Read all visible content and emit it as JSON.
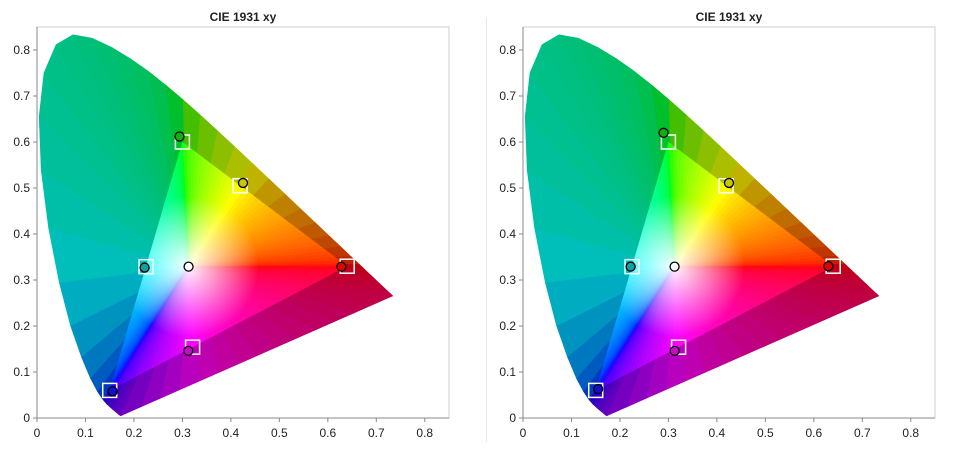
{
  "chart_data": [
    {
      "type": "scatter",
      "title": "CIE 1931 xy",
      "xlim": [
        0,
        0.85
      ],
      "ylim": [
        0,
        0.85
      ],
      "xticks": [
        "0",
        "0.1",
        "0.2",
        "0.3",
        "0.4",
        "0.5",
        "0.6",
        "0.7",
        "0.8"
      ],
      "yticks": [
        "0",
        "0.1",
        "0.2",
        "0.3",
        "0.4",
        "0.5",
        "0.6",
        "0.7",
        "0.8"
      ],
      "grid": false,
      "series": [
        {
          "marker": "square",
          "points": [
            {
              "x": 0.64,
              "y": 0.33,
              "color": "#ff0000"
            },
            {
              "x": 0.3,
              "y": 0.6,
              "color": "#00ff00"
            },
            {
              "x": 0.15,
              "y": 0.06,
              "color": "#0000ff"
            },
            {
              "x": 0.225,
              "y": 0.329,
              "color": "#00ffff"
            },
            {
              "x": 0.321,
              "y": 0.154,
              "color": "#ff00ff"
            },
            {
              "x": 0.419,
              "y": 0.505,
              "color": "#ffff00"
            }
          ]
        },
        {
          "marker": "circle",
          "points": [
            {
              "x": 0.628,
              "y": 0.329,
              "color": "#e00000"
            },
            {
              "x": 0.294,
              "y": 0.612,
              "color": "#10b010"
            },
            {
              "x": 0.156,
              "y": 0.058,
              "color": "#1010d0"
            },
            {
              "x": 0.222,
              "y": 0.327,
              "color": "#10a0a0"
            },
            {
              "x": 0.312,
              "y": 0.146,
              "color": "#c010c0"
            },
            {
              "x": 0.425,
              "y": 0.511,
              "color": "#c8c800"
            },
            {
              "x": 0.3127,
              "y": 0.329,
              "color": "#ffffff"
            }
          ]
        }
      ]
    },
    {
      "type": "scatter",
      "title": "CIE 1931 xy",
      "xlim": [
        0,
        0.85
      ],
      "ylim": [
        0,
        0.85
      ],
      "xticks": [
        "0",
        "0.1",
        "0.2",
        "0.3",
        "0.4",
        "0.5",
        "0.6",
        "0.7",
        "0.8"
      ],
      "yticks": [
        "0",
        "0.1",
        "0.2",
        "0.3",
        "0.4",
        "0.5",
        "0.6",
        "0.7",
        "0.8"
      ],
      "grid": false,
      "series": [
        {
          "marker": "square",
          "points": [
            {
              "x": 0.64,
              "y": 0.33,
              "color": "#ff0000"
            },
            {
              "x": 0.3,
              "y": 0.6,
              "color": "#00ff00"
            },
            {
              "x": 0.15,
              "y": 0.06,
              "color": "#0000ff"
            },
            {
              "x": 0.225,
              "y": 0.329,
              "color": "#00ffff"
            },
            {
              "x": 0.321,
              "y": 0.154,
              "color": "#ff00ff"
            },
            {
              "x": 0.419,
              "y": 0.505,
              "color": "#ffff00"
            }
          ]
        },
        {
          "marker": "circle",
          "points": [
            {
              "x": 0.63,
              "y": 0.33,
              "color": "#e00000"
            },
            {
              "x": 0.29,
              "y": 0.62,
              "color": "#10b010"
            },
            {
              "x": 0.155,
              "y": 0.063,
              "color": "#1010d0"
            },
            {
              "x": 0.222,
              "y": 0.329,
              "color": "#10a0a0"
            },
            {
              "x": 0.313,
              "y": 0.146,
              "color": "#c010c0"
            },
            {
              "x": 0.425,
              "y": 0.511,
              "color": "#c8c800"
            },
            {
              "x": 0.3127,
              "y": 0.329,
              "color": "#ffffff"
            }
          ]
        }
      ]
    }
  ],
  "spectral_locus": [
    [
      0.1741,
      0.005
    ],
    [
      0.1738,
      0.0049
    ],
    [
      0.1736,
      0.0049
    ],
    [
      0.1733,
      0.0048
    ],
    [
      0.173,
      0.0048
    ],
    [
      0.1726,
      0.0048
    ],
    [
      0.1721,
      0.0048
    ],
    [
      0.1714,
      0.0051
    ],
    [
      0.1703,
      0.0058
    ],
    [
      0.1689,
      0.0069
    ],
    [
      0.1669,
      0.0086
    ],
    [
      0.1644,
      0.0109
    ],
    [
      0.1611,
      0.0138
    ],
    [
      0.1566,
      0.0177
    ],
    [
      0.151,
      0.0227
    ],
    [
      0.144,
      0.0297
    ],
    [
      0.1355,
      0.0399
    ],
    [
      0.1241,
      0.0578
    ],
    [
      0.1096,
      0.0868
    ],
    [
      0.0913,
      0.1327
    ],
    [
      0.0687,
      0.2007
    ],
    [
      0.0454,
      0.295
    ],
    [
      0.0235,
      0.4127
    ],
    [
      0.0082,
      0.5384
    ],
    [
      0.0039,
      0.6548
    ],
    [
      0.0139,
      0.7502
    ],
    [
      0.0389,
      0.812
    ],
    [
      0.0743,
      0.8338
    ],
    [
      0.1142,
      0.8262
    ],
    [
      0.1547,
      0.8059
    ],
    [
      0.1929,
      0.7816
    ],
    [
      0.2296,
      0.7543
    ],
    [
      0.2658,
      0.7243
    ],
    [
      0.3016,
      0.6923
    ],
    [
      0.3373,
      0.6589
    ],
    [
      0.3731,
      0.6245
    ],
    [
      0.4087,
      0.5896
    ],
    [
      0.4441,
      0.5547
    ],
    [
      0.4788,
      0.5202
    ],
    [
      0.5125,
      0.4866
    ],
    [
      0.5448,
      0.4544
    ],
    [
      0.5752,
      0.4242
    ],
    [
      0.6029,
      0.3965
    ],
    [
      0.627,
      0.3725
    ],
    [
      0.6482,
      0.3514
    ],
    [
      0.6658,
      0.334
    ],
    [
      0.6801,
      0.3197
    ],
    [
      0.6915,
      0.3083
    ],
    [
      0.7006,
      0.2993
    ],
    [
      0.7079,
      0.292
    ],
    [
      0.714,
      0.2859
    ],
    [
      0.719,
      0.2809
    ],
    [
      0.723,
      0.277
    ],
    [
      0.726,
      0.274
    ],
    [
      0.7283,
      0.2717
    ],
    [
      0.73,
      0.27
    ],
    [
      0.7311,
      0.2689
    ],
    [
      0.732,
      0.268
    ],
    [
      0.7327,
      0.2673
    ],
    [
      0.7334,
      0.2666
    ],
    [
      0.734,
      0.266
    ],
    [
      0.7344,
      0.2656
    ],
    [
      0.7346,
      0.2654
    ],
    [
      0.7347,
      0.2653
    ]
  ]
}
